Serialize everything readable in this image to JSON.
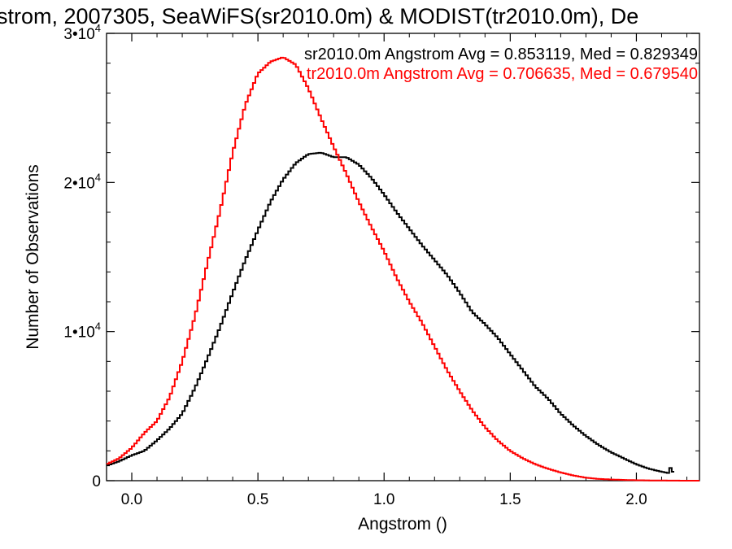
{
  "chart_data": {
    "type": "line",
    "title": "strom, 2007305, SeaWiFS(sr2010.0m) & MODIST(tr2010.0m), De",
    "xlabel": "Angstrom ()",
    "ylabel": "Number of Observations",
    "xlim": [
      -0.1,
      2.25
    ],
    "ylim": [
      0,
      30000
    ],
    "x_ticks": [
      0.0,
      0.5,
      1.0,
      1.5,
      2.0
    ],
    "x_tick_labels": [
      "0.0",
      "0.5",
      "1.0",
      "1.5",
      "2.0"
    ],
    "y_ticks": [
      0,
      10000,
      20000,
      30000
    ],
    "y_tick_labels": [
      {
        "base": "0",
        "exp": ""
      },
      {
        "base": "1•10",
        "exp": "4"
      },
      {
        "base": "2•10",
        "exp": "4"
      },
      {
        "base": "3•10",
        "exp": "4"
      }
    ],
    "grid": false,
    "legend_placement": "top-right",
    "series": [
      {
        "name": "sr2010.0m Angstrom Avg = 0.853119, Med = 0.829349",
        "color": "#000000",
        "x": [
          -0.1,
          -0.05,
          0.0,
          0.05,
          0.1,
          0.15,
          0.2,
          0.25,
          0.3,
          0.35,
          0.4,
          0.45,
          0.5,
          0.55,
          0.6,
          0.65,
          0.7,
          0.75,
          0.8,
          0.85,
          0.9,
          0.95,
          1.0,
          1.05,
          1.1,
          1.15,
          1.2,
          1.25,
          1.3,
          1.35,
          1.4,
          1.45,
          1.5,
          1.55,
          1.6,
          1.65,
          1.7,
          1.75,
          1.8,
          1.85,
          1.9,
          1.95,
          2.0,
          2.05,
          2.1,
          2.13,
          2.14,
          2.15
        ],
        "y": [
          1000,
          1300,
          1700,
          2000,
          2700,
          3500,
          4500,
          6200,
          8200,
          10300,
          12600,
          14800,
          16800,
          18700,
          20200,
          21300,
          21900,
          22000,
          21700,
          21700,
          21200,
          20300,
          19200,
          18000,
          16900,
          15800,
          14800,
          13800,
          12600,
          11300,
          10500,
          9600,
          8500,
          7400,
          6300,
          5500,
          4500,
          3700,
          3000,
          2400,
          1900,
          1500,
          1100,
          800,
          600,
          500,
          1200,
          0
        ]
      },
      {
        "name": "tr2010.0m Angstrom Avg = 0.706635, Med = 0.679540",
        "color": "#ff0000",
        "x": [
          -0.1,
          -0.05,
          0.0,
          0.05,
          0.1,
          0.15,
          0.2,
          0.25,
          0.3,
          0.35,
          0.4,
          0.45,
          0.5,
          0.55,
          0.6,
          0.65,
          0.7,
          0.75,
          0.8,
          0.85,
          0.9,
          0.95,
          1.0,
          1.05,
          1.1,
          1.15,
          1.2,
          1.25,
          1.3,
          1.35,
          1.4,
          1.45,
          1.5,
          1.55,
          1.6,
          1.65,
          1.7,
          1.75,
          1.8,
          1.85,
          1.9,
          1.95,
          2.0,
          2.05,
          2.1,
          2.15,
          2.2,
          2.25
        ],
        "y": [
          1100,
          1500,
          2200,
          3200,
          4000,
          5600,
          8000,
          11000,
          14600,
          18100,
          22000,
          25200,
          27300,
          28100,
          28400,
          27900,
          26300,
          24300,
          22400,
          20600,
          18700,
          17000,
          15400,
          13600,
          12000,
          10600,
          9000,
          7400,
          6000,
          4700,
          3600,
          2700,
          2000,
          1500,
          1100,
          800,
          550,
          350,
          200,
          120,
          80,
          50,
          30,
          20,
          10,
          5,
          0,
          0
        ]
      }
    ]
  }
}
